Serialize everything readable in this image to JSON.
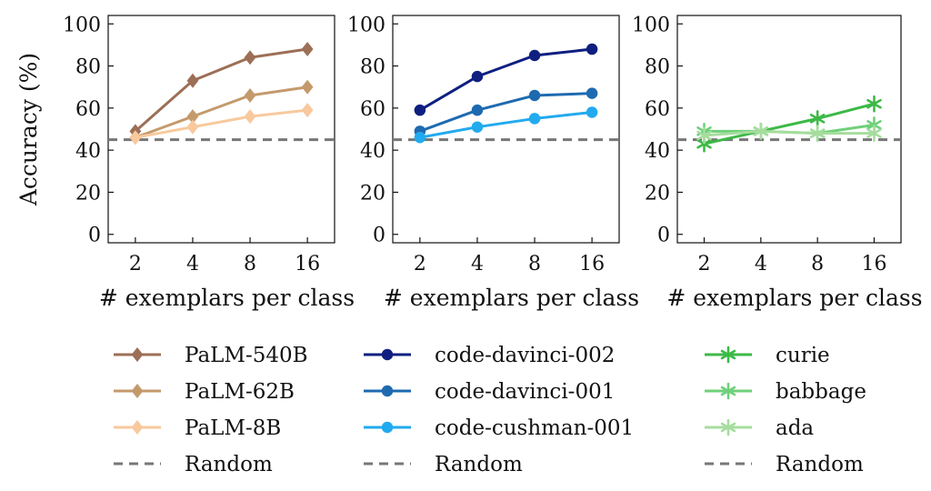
{
  "chart_data": [
    {
      "type": "line",
      "x": [
        2,
        4,
        8,
        16
      ],
      "x_ticks": [
        "2",
        "4",
        "8",
        "16"
      ],
      "y_ticks": [
        "0",
        "20",
        "40",
        "60",
        "80",
        "100"
      ],
      "ylim": [
        -4,
        104
      ],
      "xlabel": "# exemplars per class",
      "ylabel": "Accuracy (%)",
      "random_baseline": 45,
      "series": [
        {
          "name": "PaLM-540B",
          "color": "#9c6f56",
          "marker": "diamond",
          "values": [
            49,
            73,
            84,
            88
          ]
        },
        {
          "name": "PaLM-62B",
          "color": "#c49a6c",
          "marker": "diamond",
          "values": [
            46,
            56,
            66,
            70
          ]
        },
        {
          "name": "PaLM-8B",
          "color": "#f8c99d",
          "marker": "diamond",
          "values": [
            46,
            51,
            56,
            59
          ]
        }
      ]
    },
    {
      "type": "line",
      "x": [
        2,
        4,
        8,
        16
      ],
      "x_ticks": [
        "2",
        "4",
        "8",
        "16"
      ],
      "y_ticks": [
        "0",
        "20",
        "40",
        "60",
        "80",
        "100"
      ],
      "ylim": [
        -4,
        104
      ],
      "xlabel": "# exemplars per class",
      "ylabel": "",
      "random_baseline": 45,
      "series": [
        {
          "name": "code-davinci-002",
          "color": "#0f1f80",
          "marker": "circle",
          "values": [
            59,
            75,
            85,
            88
          ]
        },
        {
          "name": "code-davinci-001",
          "color": "#1e6ab0",
          "marker": "circle",
          "values": [
            49,
            59,
            66,
            67
          ]
        },
        {
          "name": "code-cushman-001",
          "color": "#22aaee",
          "marker": "circle",
          "values": [
            46,
            51,
            55,
            58
          ]
        }
      ]
    },
    {
      "type": "line",
      "x": [
        2,
        4,
        8,
        16
      ],
      "x_ticks": [
        "2",
        "4",
        "8",
        "16"
      ],
      "y_ticks": [
        "0",
        "20",
        "40",
        "60",
        "80",
        "100"
      ],
      "ylim": [
        -4,
        104
      ],
      "xlabel": "# exemplars per class",
      "ylabel": "",
      "random_baseline": 45,
      "series": [
        {
          "name": "curie",
          "color": "#3cb947",
          "marker": "star",
          "values": [
            43,
            49,
            55,
            62
          ]
        },
        {
          "name": "babbage",
          "color": "#6fd07a",
          "marker": "star",
          "values": [
            49,
            49,
            48,
            52
          ]
        },
        {
          "name": "ada",
          "color": "#a6dd9e",
          "marker": "star",
          "values": [
            47,
            49,
            48,
            48
          ]
        }
      ]
    }
  ],
  "legend": {
    "random_label": "Random",
    "random_color": "#777777"
  }
}
